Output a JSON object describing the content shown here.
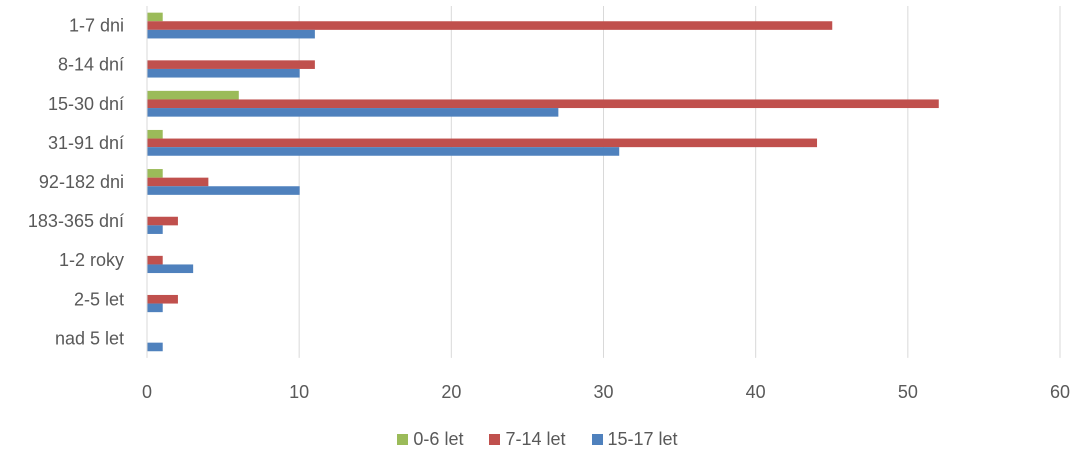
{
  "chart_data": {
    "type": "bar",
    "orientation": "horizontal",
    "categories": [
      "1-7 dni",
      "8-14 dní",
      "15-30 dní",
      "31-91 dní",
      "92-182 dni",
      "183-365 dní",
      "1-2 roky",
      "2-5 let",
      "nad 5 let"
    ],
    "series": [
      {
        "name": "0-6 let",
        "color": "#9BBB59",
        "values": [
          1,
          0,
          6,
          1,
          1,
          0,
          0,
          0,
          0
        ]
      },
      {
        "name": "7-14 let",
        "color": "#C0504D",
        "values": [
          45,
          11,
          52,
          44,
          4,
          2,
          1,
          2,
          0
        ]
      },
      {
        "name": "15-17 let",
        "color": "#4F81BD",
        "values": [
          11,
          10,
          27,
          31,
          10,
          1,
          3,
          1,
          1
        ]
      }
    ],
    "xlim": [
      0,
      60
    ],
    "xticks": [
      "0",
      "10",
      "20",
      "30",
      "40",
      "50",
      "60"
    ],
    "grid": true,
    "legend_position": "bottom"
  }
}
